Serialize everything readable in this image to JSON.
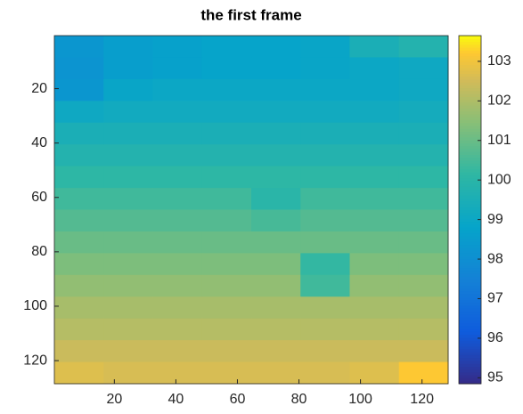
{
  "chart_data": {
    "type": "heatmap",
    "title": "the first frame",
    "xlim": [
      0.5,
      128.5
    ],
    "ylim": [
      0.5,
      128.5
    ],
    "y_reversed": true,
    "xticks": [
      20,
      40,
      60,
      80,
      100,
      120
    ],
    "yticks": [
      20,
      40,
      60,
      80,
      100,
      120
    ],
    "colormap": "parula",
    "clim": [
      94.85,
      103.65
    ],
    "colorbar_ticks": [
      95,
      96,
      97,
      98,
      99,
      100,
      101,
      102,
      103
    ],
    "z": [
      [
        98.3,
        98.6,
        98.7,
        98.8,
        98.8,
        98.9,
        99.5,
        99.8
      ],
      [
        98.2,
        98.6,
        98.7,
        98.8,
        98.8,
        98.9,
        99.0,
        99.1
      ],
      [
        98.3,
        98.9,
        99.0,
        99.0,
        99.0,
        99.0,
        99.0,
        99.1
      ],
      [
        99.1,
        99.2,
        99.2,
        99.2,
        99.2,
        99.2,
        99.2,
        99.3
      ],
      [
        99.5,
        99.5,
        99.5,
        99.5,
        99.5,
        99.5,
        99.5,
        99.5
      ],
      [
        99.8,
        99.8,
        99.8,
        99.8,
        99.8,
        99.8,
        99.8,
        99.8
      ],
      [
        100.1,
        100.1,
        100.1,
        100.1,
        100.1,
        100.1,
        100.1,
        100.1
      ],
      [
        100.4,
        100.4,
        100.4,
        100.4,
        100.0,
        100.4,
        100.4,
        100.4
      ],
      [
        100.7,
        100.7,
        100.7,
        100.7,
        100.5,
        100.7,
        100.7,
        100.7
      ],
      [
        101.0,
        101.0,
        101.0,
        101.0,
        101.0,
        101.0,
        101.0,
        101.0
      ],
      [
        101.3,
        101.3,
        101.3,
        101.3,
        101.3,
        100.2,
        101.3,
        101.3
      ],
      [
        101.6,
        101.6,
        101.6,
        101.6,
        101.6,
        100.4,
        101.6,
        101.6
      ],
      [
        101.9,
        101.9,
        101.9,
        101.9,
        101.9,
        101.9,
        101.9,
        101.9
      ],
      [
        102.1,
        102.1,
        102.1,
        102.1,
        102.1,
        102.1,
        102.1,
        102.1
      ],
      [
        102.4,
        102.4,
        102.4,
        102.4,
        102.4,
        102.4,
        102.4,
        102.4
      ],
      [
        102.7,
        102.6,
        102.6,
        102.6,
        102.6,
        102.6,
        102.7,
        103.2
      ]
    ]
  }
}
